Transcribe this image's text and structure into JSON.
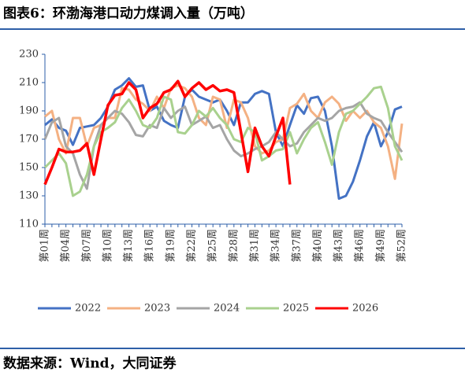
{
  "chart_data": {
    "type": "line",
    "title": "图表6：环渤海港口动力煤调入量（万吨）",
    "source": "数据来源：Wind，大同证券",
    "categories": [
      "第01周",
      null,
      null,
      "第04周",
      null,
      null,
      "第07周",
      null,
      null,
      "第10周",
      null,
      null,
      "第13周",
      null,
      null,
      "第16周",
      null,
      null,
      "第19周",
      null,
      null,
      "第22周",
      null,
      null,
      "第25周",
      null,
      null,
      "第28周",
      null,
      null,
      "第31周",
      null,
      null,
      "第34周",
      null,
      null,
      "第37周",
      null,
      null,
      "第40周",
      null,
      null,
      "第43周",
      null,
      null,
      "第46周",
      null,
      null,
      "第49周",
      null,
      null,
      "第52周"
    ],
    "ylim": [
      110,
      230
    ],
    "yticks": [
      110,
      130,
      150,
      170,
      190,
      210,
      230
    ],
    "series": [
      {
        "name": "2022",
        "color": "#4472c4",
        "values": [
          180,
          184,
          178,
          176,
          166,
          178,
          179,
          180,
          185,
          193,
          205,
          208,
          213,
          207,
          208,
          190,
          193,
          183,
          180,
          178,
          200,
          205,
          200,
          198,
          196,
          198,
          190,
          180,
          196,
          196,
          202,
          204,
          202,
          175,
          165,
          180,
          194,
          188,
          199,
          200,
          190,
          165,
          128,
          130,
          140,
          155,
          172,
          182,
          165,
          175,
          191,
          193
        ]
      },
      {
        "name": "2023",
        "color": "#f4b183",
        "values": [
          186,
          190,
          170,
          160,
          185,
          185,
          165,
          178,
          180,
          185,
          185,
          206,
          205,
          198,
          195,
          190,
          200,
          192,
          206,
          208,
          206,
          200,
          185,
          180,
          200,
          198,
          178,
          198,
          196,
          185,
          165,
          160,
          162,
          168,
          170,
          192,
          195,
          202,
          190,
          185,
          196,
          200,
          195,
          183,
          190,
          185,
          190,
          182,
          178,
          165,
          142,
          181
        ]
      },
      {
        "name": "2024",
        "color": "#a5a5a5",
        "values": [
          170,
          182,
          185,
          165,
          160,
          145,
          135,
          165,
          180,
          185,
          190,
          188,
          182,
          173,
          172,
          180,
          178,
          192,
          185,
          190,
          193,
          180,
          183,
          186,
          178,
          180,
          170,
          162,
          158,
          160,
          163,
          165,
          168,
          175,
          170,
          165,
          167,
          175,
          180,
          185,
          183,
          185,
          190,
          192,
          193,
          196,
          188,
          185,
          183,
          175,
          168,
          161
        ]
      },
      {
        "name": "2025",
        "color": "#a9d18e",
        "values": [
          150,
          155,
          160,
          153,
          130,
          133,
          145,
          165,
          175,
          178,
          182,
          192,
          198,
          190,
          180,
          178,
          185,
          200,
          198,
          175,
          174,
          180,
          190,
          186,
          192,
          185,
          180,
          170,
          168,
          178,
          175,
          155,
          158,
          162,
          163,
          175,
          160,
          170,
          178,
          182,
          168,
          152,
          175,
          188,
          190,
          195,
          200,
          206,
          207,
          192,
          165,
          155
        ]
      },
      {
        "name": "2026",
        "color": "#ff0000",
        "values": [
          138,
          150,
          163,
          161,
          161,
          162,
          167,
          145,
          170,
          194,
          201,
          202,
          210,
          205,
          185,
          192,
          195,
          203,
          205,
          211,
          200,
          206,
          210,
          205,
          208,
          204,
          205,
          203,
          175,
          147,
          178,
          165,
          158,
          172,
          185,
          138,
          null,
          null,
          null,
          null,
          null,
          null,
          null,
          null,
          null,
          null,
          null,
          null,
          null,
          null,
          null,
          null
        ]
      }
    ]
  }
}
